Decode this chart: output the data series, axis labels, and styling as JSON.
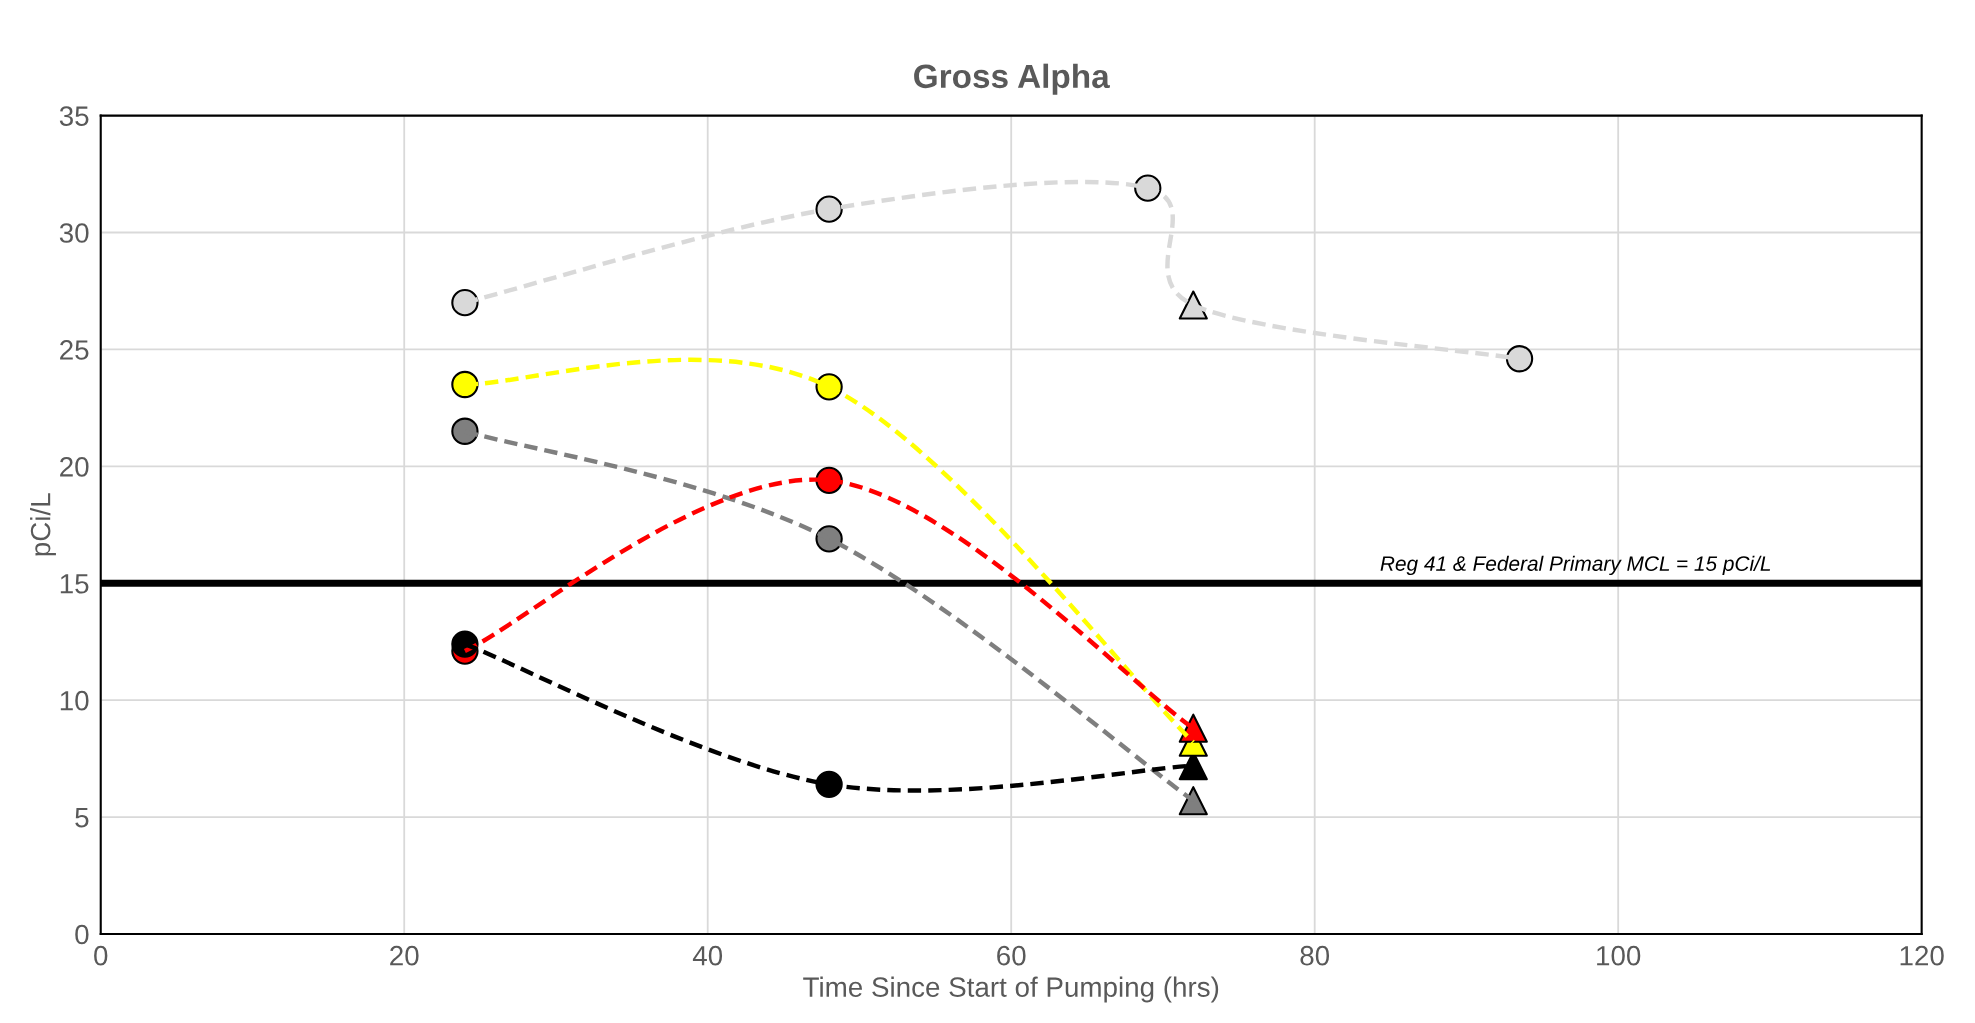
{
  "chart_data": {
    "type": "line",
    "title": "Gross Alpha",
    "xlabel": "Time Since Start of Pumping (hrs)",
    "ylabel": "pCi/L",
    "xlim": [
      0,
      120
    ],
    "xticks": [
      0,
      20,
      40,
      60,
      80,
      100,
      120
    ],
    "ylim": [
      0,
      35
    ],
    "yticks": [
      0,
      5,
      10,
      15,
      20,
      25,
      30,
      35
    ],
    "grid": true,
    "line_style": "dashed",
    "series": [
      {
        "color": "#d9d9d9",
        "x": [
          24,
          48,
          69,
          72,
          93.5
        ],
        "values": [
          27,
          31,
          31.9,
          26.9,
          24.6
        ],
        "marker": "none"
      },
      {
        "color": "#ffff00",
        "x": [
          24,
          48,
          72
        ],
        "values": [
          23.5,
          23.4,
          8.2
        ],
        "marker": "none"
      },
      {
        "color": "#7f7f7f",
        "x": [
          24,
          48,
          72
        ],
        "values": [
          21.5,
          16.9,
          5.7
        ],
        "marker": "none"
      },
      {
        "color": "#ff0000",
        "x": [
          24,
          48,
          72
        ],
        "values": [
          12.1,
          19.4,
          8.8
        ],
        "marker": "none"
      },
      {
        "color": "#000000",
        "x": [
          24,
          48,
          72
        ],
        "values": [
          12.4,
          6.4,
          7.2
        ],
        "marker": "none"
      },
      {
        "type": "scatter",
        "color": "#d9d9d9",
        "x": [
          24,
          48,
          69,
          93.5
        ],
        "values": [
          27,
          31,
          31.9,
          24.6
        ],
        "marker": "circle"
      },
      {
        "type": "scatter",
        "color": "#d9d9d9",
        "x": [
          72
        ],
        "values": [
          26.9
        ],
        "marker": "triangle"
      },
      {
        "type": "scatter",
        "color": "#ffff00",
        "x": [
          24,
          48
        ],
        "values": [
          23.5,
          23.4
        ],
        "marker": "circle"
      },
      {
        "type": "scatter",
        "color": "#7f7f7f",
        "x": [
          24,
          48
        ],
        "values": [
          21.5,
          16.9
        ],
        "marker": "circle"
      },
      {
        "type": "scatter",
        "color": "#ff0000",
        "x": [
          24,
          48
        ],
        "values": [
          12.1,
          19.4
        ],
        "marker": "circle"
      },
      {
        "type": "scatter",
        "color": "#000000",
        "x": [
          24,
          48
        ],
        "values": [
          12.4,
          6.4
        ],
        "marker": "circle"
      },
      {
        "type": "scatter",
        "color": "#7f7f7f",
        "x": [
          72
        ],
        "values": [
          5.7
        ],
        "marker": "triangle"
      },
      {
        "type": "scatter",
        "color": "#000000",
        "x": [
          72
        ],
        "values": [
          7.2
        ],
        "marker": "triangle"
      },
      {
        "type": "scatter",
        "color": "#ffff00",
        "x": [
          72
        ],
        "values": [
          8.2
        ],
        "marker": "triangle"
      },
      {
        "type": "scatter",
        "color": "#ff0000",
        "x": [
          72
        ],
        "values": [
          8.8
        ],
        "marker": "triangle"
      }
    ],
    "ref_lines": [
      {
        "axis": "y",
        "value": 15,
        "label": "Reg 41 & Federal Primary MCL = 15 pCi/L",
        "color": "#000000",
        "line_style": "solid"
      }
    ]
  }
}
